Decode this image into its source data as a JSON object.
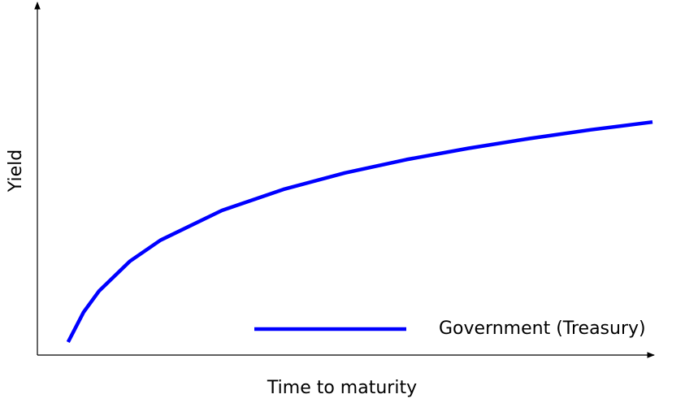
{
  "chart_data": {
    "type": "line",
    "xlabel": "Time to maturity",
    "ylabel": "Yield",
    "x": [
      0.5,
      0.75,
      1,
      1.5,
      2,
      3,
      4,
      5,
      6,
      7,
      8,
      9,
      10
    ],
    "series": [
      {
        "name": "Government (Treasury)",
        "color": "#0000ff",
        "values": [
          0.37,
          1.22,
          1.82,
          2.67,
          3.27,
          4.12,
          4.72,
          5.19,
          5.57,
          5.89,
          6.17,
          6.42,
          6.64
        ]
      }
    ],
    "xlim": [
      0,
      10
    ],
    "ylim": [
      0,
      10
    ],
    "legend": "lower right"
  }
}
